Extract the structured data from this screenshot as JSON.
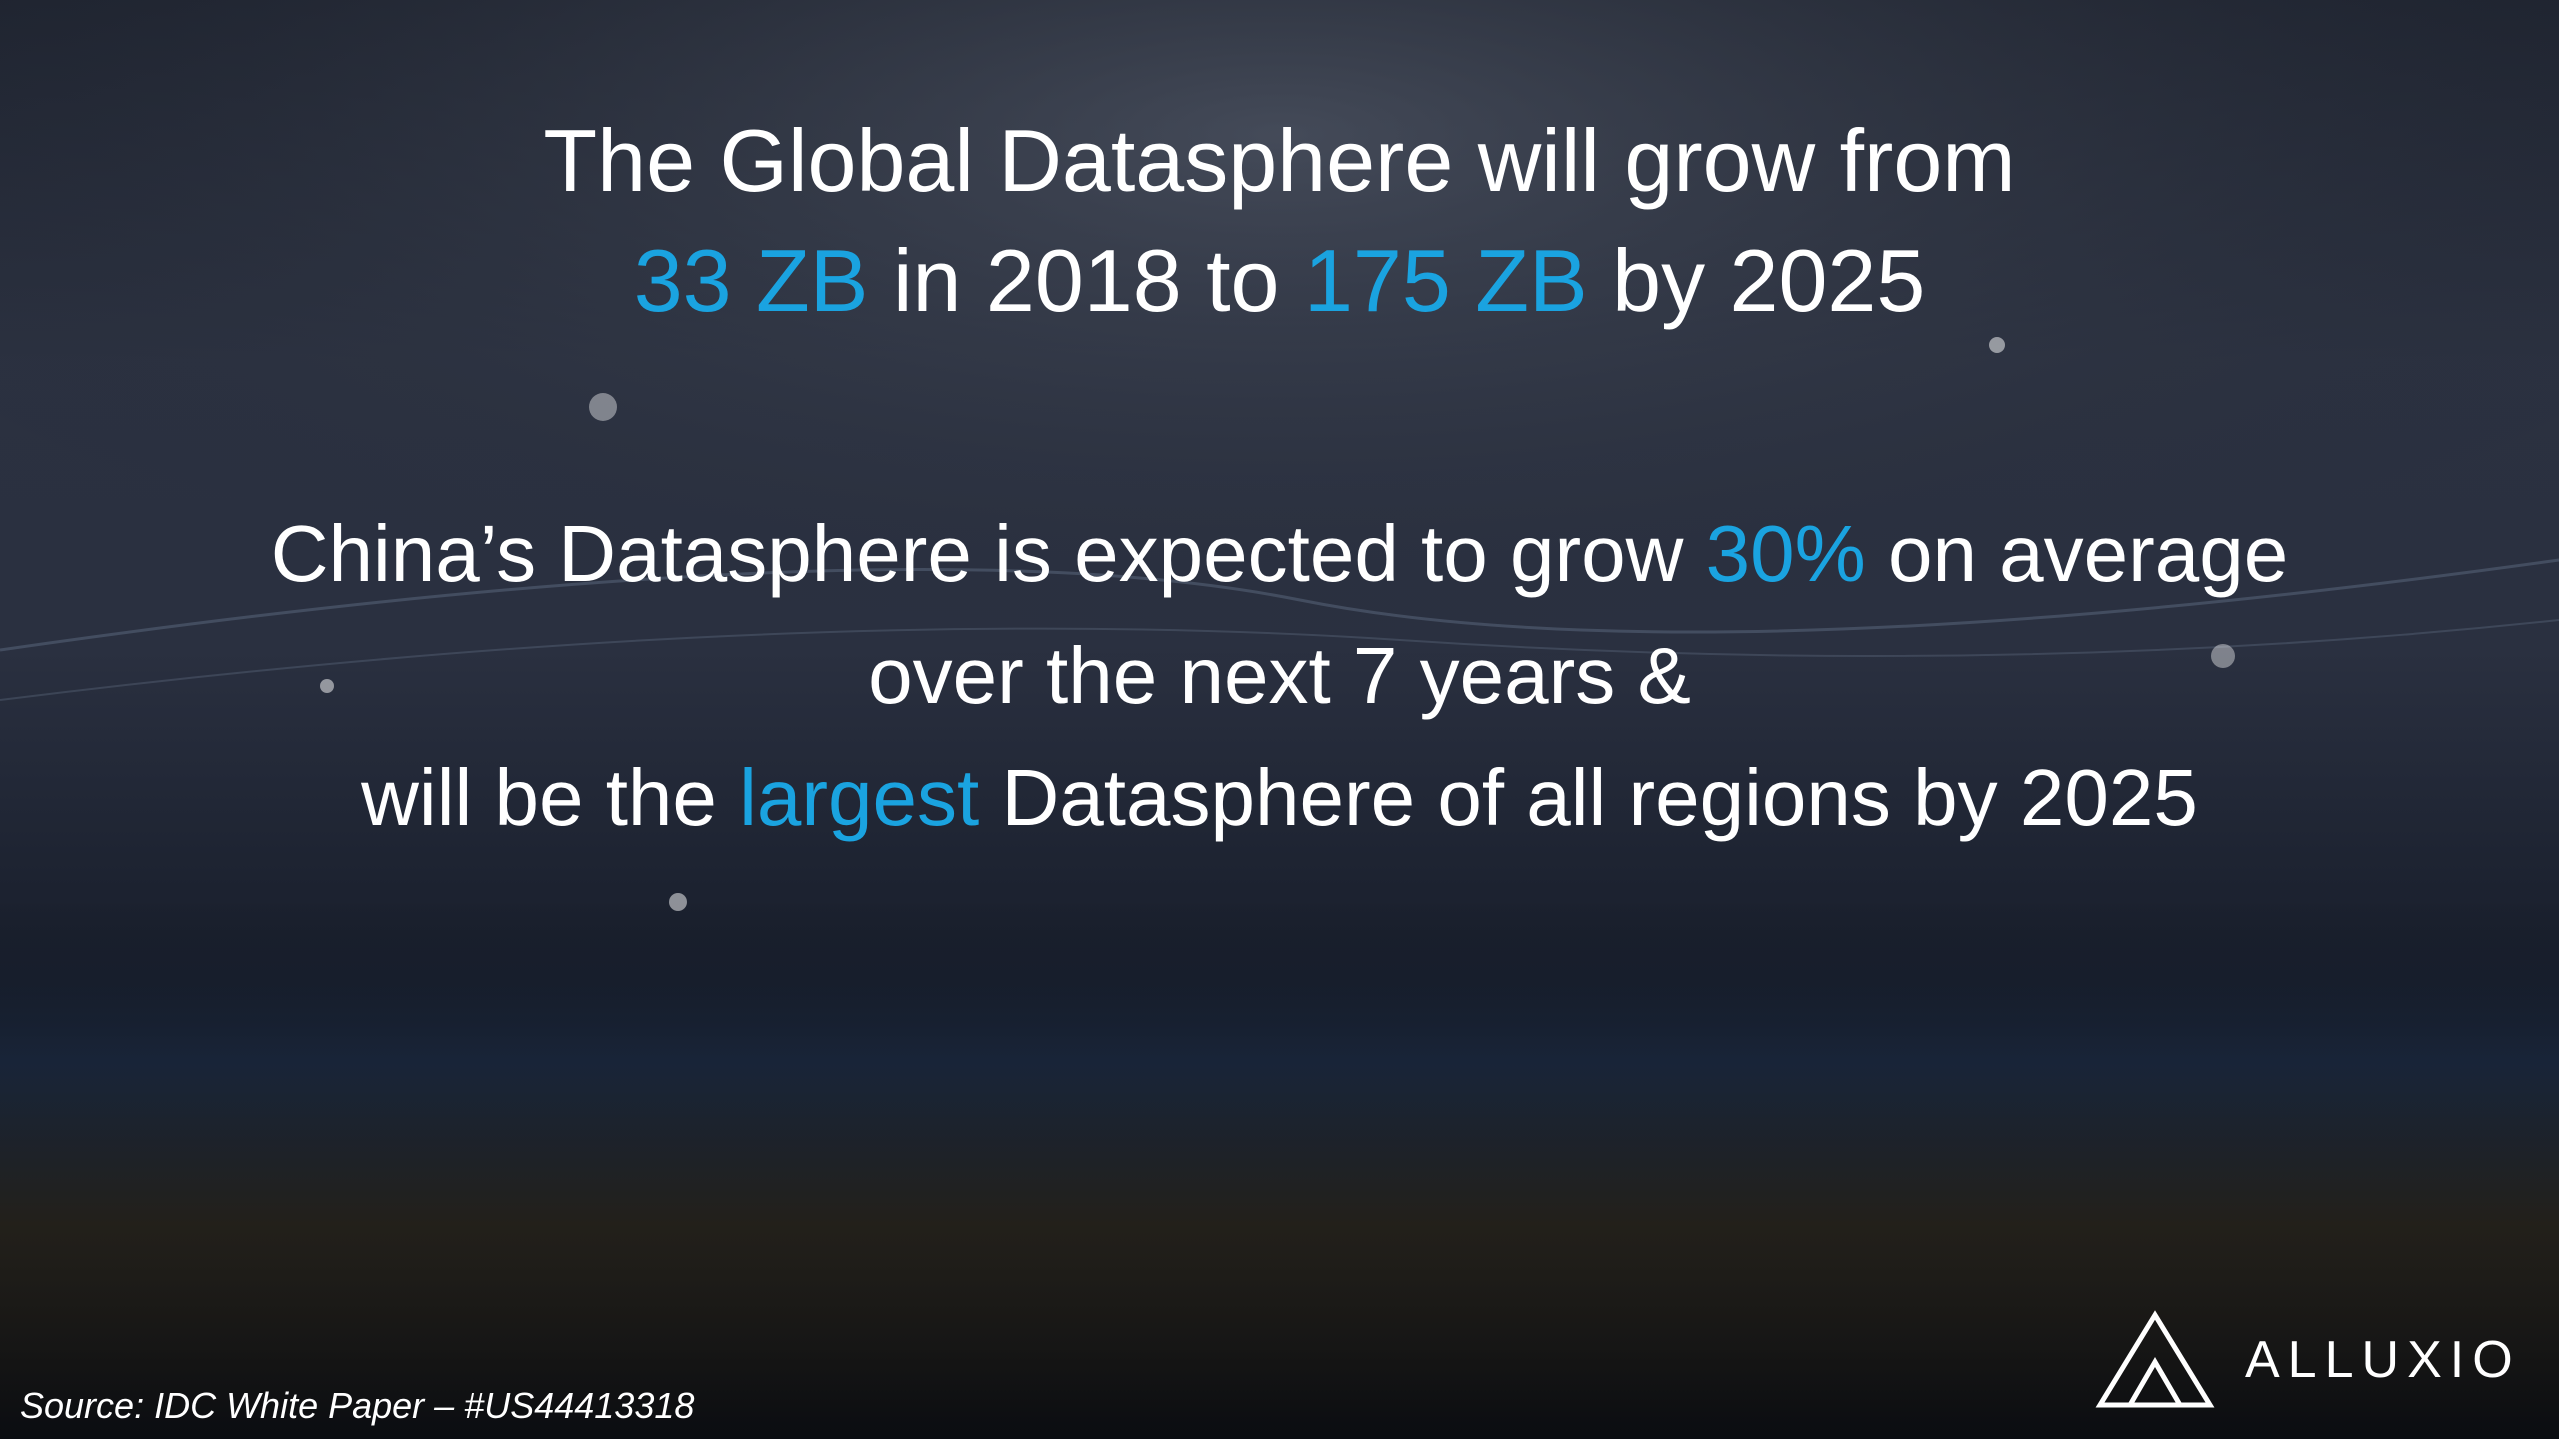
{
  "headline": {
    "line1": "The Global Datasphere will grow from",
    "line2": [
      "33 ZB",
      "in 2018 to",
      "175 ZB",
      "by 2025"
    ]
  },
  "china": {
    "line1": [
      "China’s Datasphere is expected to grow",
      "30%",
      "on average"
    ],
    "line2": "over the next 7 years &",
    "line3": [
      "will be the",
      "largest",
      "Datasphere of all regions by 2025"
    ]
  },
  "source": "Source:  IDC White Paper – #US44413318",
  "logo": "ALLUXIO"
}
